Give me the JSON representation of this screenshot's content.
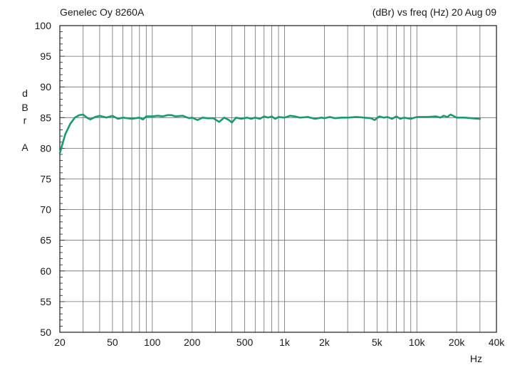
{
  "chart_data": {
    "type": "line",
    "title_left": "Genelec Oy 8260A",
    "title_right": "(dBr) vs freq (Hz) 20 Aug 09",
    "ylabel_letters": [
      "d",
      "B",
      "r",
      "A"
    ],
    "xlabel": "Hz",
    "x_scale": "log",
    "xlim": [
      20,
      40000
    ],
    "ylim": [
      50,
      100
    ],
    "grid": true,
    "y_ticks": [
      50,
      55,
      60,
      65,
      70,
      75,
      80,
      85,
      90,
      95,
      100
    ],
    "y_tick_labels": [
      "50",
      "55",
      "60",
      "65",
      "70",
      "75",
      "80",
      "85",
      "90",
      "95",
      "100"
    ],
    "x_ticks": [
      20,
      50,
      100,
      200,
      500,
      1000,
      2000,
      5000,
      10000,
      20000,
      40000
    ],
    "x_tick_labels": [
      "20",
      "50",
      "100",
      "200",
      "500",
      "1k",
      "2k",
      "5k",
      "10k",
      "20k",
      "40k"
    ],
    "series": [
      {
        "color": "#1a9a6e",
        "x": [
          20,
          21,
          22,
          24,
          26,
          28,
          30,
          32,
          34,
          37,
          40,
          45,
          50,
          55,
          60,
          70,
          80,
          85,
          90,
          100,
          110,
          120,
          130,
          140,
          150,
          170,
          190,
          200,
          220,
          240,
          260,
          290,
          320,
          350,
          380,
          400,
          430,
          470,
          520,
          560,
          600,
          650,
          700,
          750,
          800,
          850,
          900,
          1000,
          1100,
          1200,
          1300,
          1500,
          1700,
          1900,
          2000,
          2200,
          2400,
          2700,
          3000,
          3500,
          4000,
          4500,
          4800,
          5200,
          5600,
          6000,
          6500,
          7000,
          7500,
          8000,
          9000,
          10000,
          12000,
          14000,
          15000,
          16000,
          17000,
          18000,
          20000,
          23000,
          26000,
          30000
        ],
        "y": [
          79.2,
          80.8,
          82.3,
          84.0,
          85.0,
          85.4,
          85.5,
          85.0,
          84.7,
          85.1,
          85.3,
          85.0,
          85.3,
          84.8,
          85.0,
          84.8,
          85.0,
          84.7,
          85.2,
          85.2,
          85.3,
          85.2,
          85.4,
          85.4,
          85.2,
          85.3,
          84.9,
          85.0,
          84.6,
          85.0,
          84.9,
          84.9,
          84.3,
          85.0,
          84.6,
          84.2,
          85.0,
          84.8,
          85.0,
          84.8,
          85.0,
          84.8,
          85.2,
          85.0,
          85.2,
          84.8,
          85.1,
          85.0,
          85.3,
          85.2,
          85.0,
          85.1,
          84.8,
          85.0,
          84.9,
          85.1,
          84.9,
          85.0,
          85.0,
          85.1,
          85.0,
          84.9,
          84.6,
          85.2,
          85.0,
          85.1,
          84.8,
          85.2,
          84.8,
          85.0,
          84.8,
          85.1,
          85.1,
          85.2,
          85.0,
          85.3,
          85.1,
          85.5,
          85.0,
          85.0,
          84.9,
          84.8
        ]
      }
    ]
  }
}
